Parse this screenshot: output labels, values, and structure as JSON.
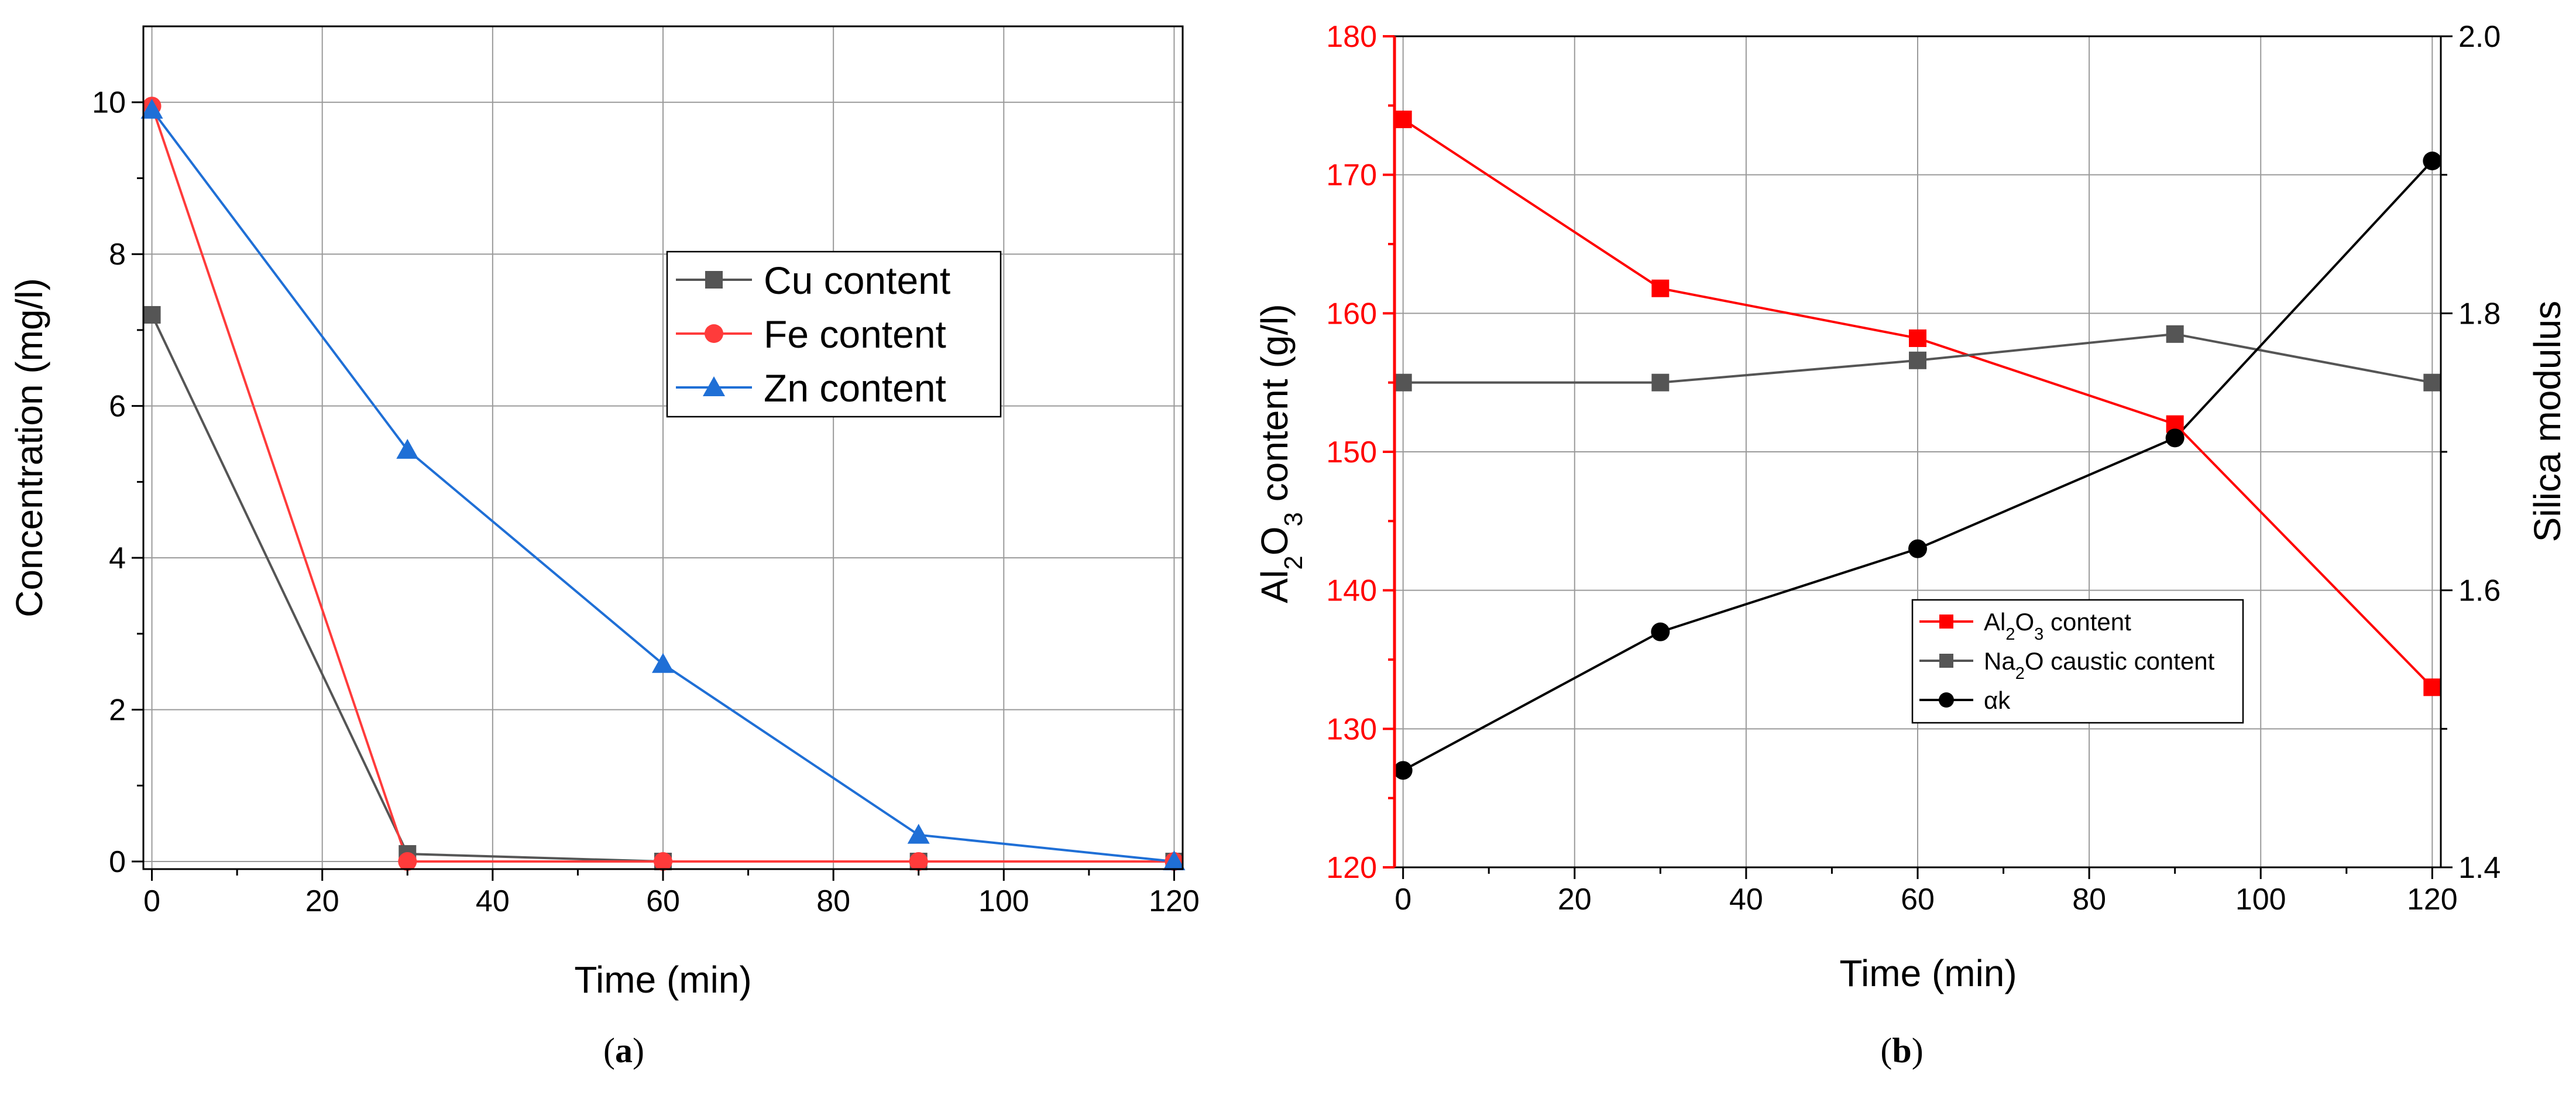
{
  "chart_data": [
    {
      "type": "line",
      "panel_label": "a",
      "xlabel": "Time (min)",
      "ylabel": "Concentration (mg/l)",
      "xlim": [
        -1,
        121
      ],
      "ylim": [
        -0.1,
        11
      ],
      "xticks": [
        0,
        20,
        40,
        60,
        80,
        100,
        120
      ],
      "yticks": [
        0,
        2,
        4,
        6,
        8,
        10
      ],
      "grid": true,
      "legend_position": "center-right",
      "x": [
        0,
        30,
        60,
        90,
        120
      ],
      "series": [
        {
          "name": "Cu content",
          "color": "#555555",
          "marker": "square",
          "values": [
            7.2,
            0.1,
            0.0,
            0.0,
            0.0
          ]
        },
        {
          "name": "Fe content",
          "color": "#ff3b3b",
          "marker": "circle",
          "values": [
            9.95,
            0.0,
            0.0,
            0.0,
            0.0
          ]
        },
        {
          "name": "Zn content",
          "color": "#1f6fd6",
          "marker": "triangle",
          "values": [
            9.9,
            5.42,
            2.6,
            0.35,
            0.0
          ]
        }
      ]
    },
    {
      "type": "line",
      "panel_label": "b",
      "xlabel": "Time (min)",
      "ylabel_left": {
        "pre": "Al",
        "sub1": "2",
        "mid": "O",
        "sub2": "3",
        "post": " content (g/l)"
      },
      "ylabel_right": "Silica modulus",
      "xlim": [
        -1,
        121
      ],
      "ylim_left": [
        120,
        180
      ],
      "ylim_right": [
        1.4,
        2.0
      ],
      "xticks": [
        0,
        20,
        40,
        60,
        80,
        100,
        120
      ],
      "yticks_left": [
        120,
        130,
        140,
        150,
        160,
        170,
        180
      ],
      "yticks_right": [
        1.4,
        1.6,
        1.8,
        2.0
      ],
      "left_axis_color": "#ff0000",
      "grid": true,
      "legend_position": "bottom-right",
      "x": [
        0,
        30,
        60,
        90,
        120
      ],
      "series": [
        {
          "name": "Al2O3 content",
          "label": {
            "pre": "Al",
            "sub1": "2",
            "mid": "O",
            "sub2": "3",
            "post": " content"
          },
          "axis": "left",
          "color": "#ff0000",
          "marker": "square",
          "values": [
            174,
            161.8,
            158.2,
            152,
            133
          ]
        },
        {
          "name": "Na2O caustic content",
          "label": {
            "pre": "Na",
            "sub1": "2",
            "mid": "O caustic content",
            "sub2": "",
            "post": ""
          },
          "axis": "left",
          "color": "#555555",
          "marker": "square",
          "values": [
            155,
            155,
            156.6,
            158.5,
            155
          ]
        },
        {
          "name": "αk",
          "label": {
            "pre": "αk",
            "sub1": "",
            "mid": "",
            "sub2": "",
            "post": ""
          },
          "axis": "right",
          "color": "#000000",
          "marker": "circle",
          "values": [
            1.47,
            1.57,
            1.63,
            1.71,
            1.91
          ]
        }
      ]
    }
  ]
}
